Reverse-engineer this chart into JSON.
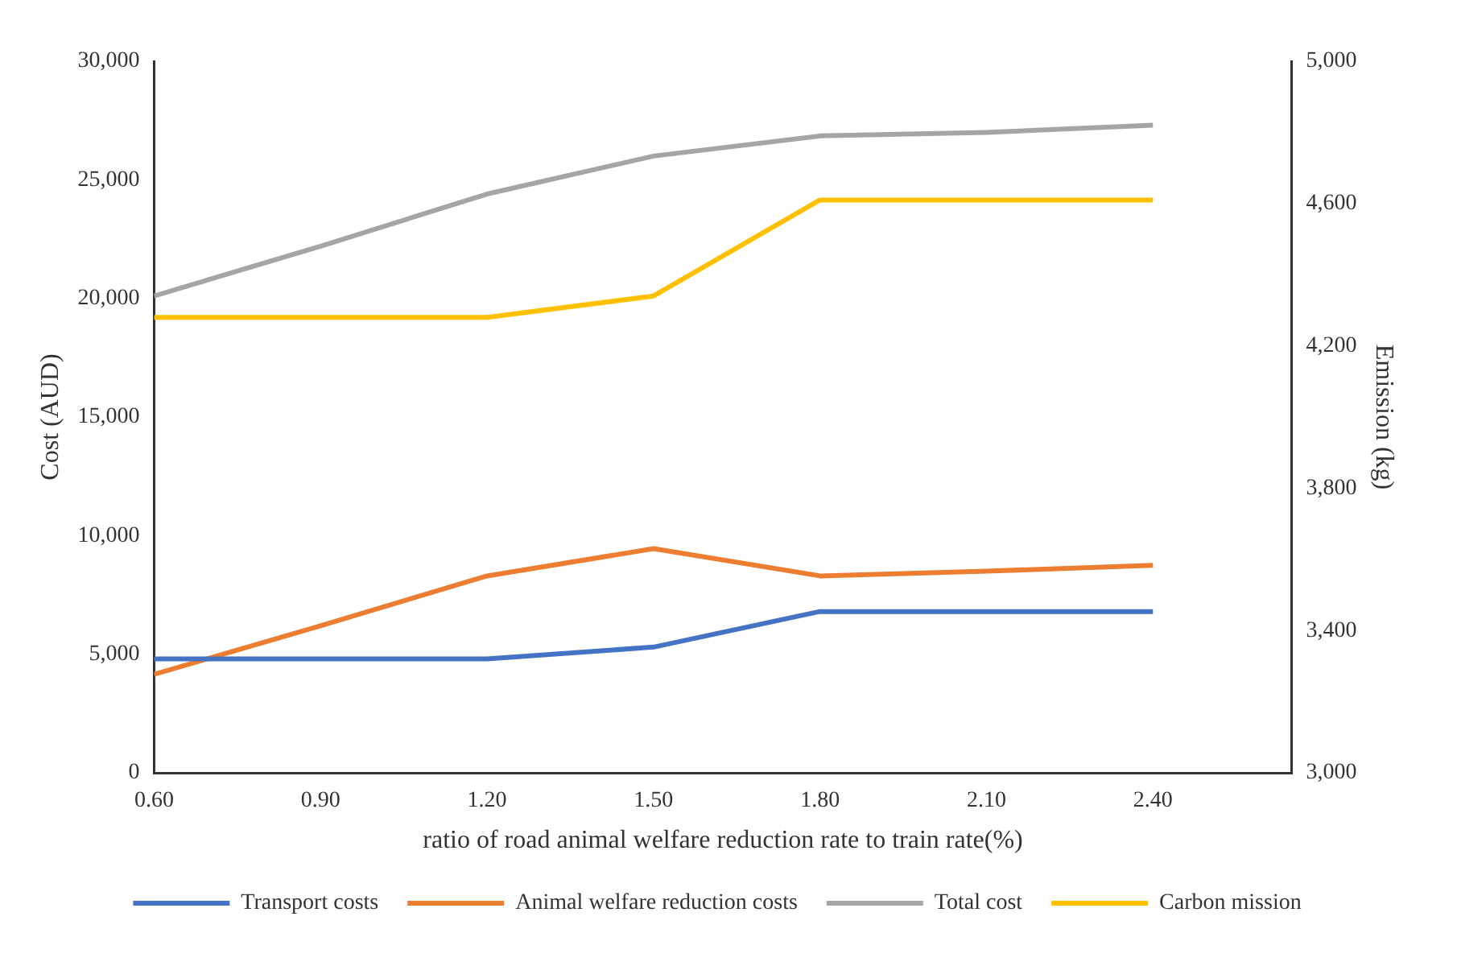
{
  "chart_data": {
    "type": "line",
    "xlabel": "ratio of road animal welfare reduction rate to train rate(%)",
    "ylabel": "Cost (AUD)",
    "y2label": "Emission (kg)",
    "x": [
      0.6,
      0.9,
      1.2,
      1.5,
      1.8,
      2.1,
      2.4
    ],
    "series": [
      {
        "name": "Transport costs",
        "color": "#4472c4",
        "values": [
          4800,
          4800,
          4800,
          5300,
          6800,
          6800,
          6800
        ]
      },
      {
        "name": "Animal welfare reduction costs",
        "color": "#ed7d31",
        "values": [
          4150,
          6200,
          8300,
          9450,
          8300,
          8500,
          8750
        ]
      },
      {
        "name": "Total cost",
        "color": "#a5a5a5",
        "values": [
          20100,
          22200,
          24400,
          26000,
          26850,
          27000,
          27300
        ]
      },
      {
        "name": "Carbon mission",
        "color": "#ffc000",
        "axis": "y2",
        "values": [
          4280,
          4280,
          4280,
          4340,
          4610,
          4610,
          4610
        ]
      }
    ],
    "xlim": [
      0.6,
      2.65
    ],
    "xticks": [
      {
        "value": 0.6,
        "label": "0.60"
      },
      {
        "value": 0.9,
        "label": "0.90"
      },
      {
        "value": 1.2,
        "label": "1.20"
      },
      {
        "value": 1.5,
        "label": "1.50"
      },
      {
        "value": 1.8,
        "label": "1.80"
      },
      {
        "value": 2.1,
        "label": "2.10"
      },
      {
        "value": 2.4,
        "label": "2.40"
      }
    ],
    "ylim": [
      0,
      30000
    ],
    "yticks": [
      0,
      {
        "value": 5000,
        "label": "5,000"
      },
      {
        "value": 10000,
        "label": "10,000"
      },
      {
        "value": 15000,
        "label": "15,000"
      },
      {
        "value": 20000,
        "label": "20,000"
      },
      {
        "value": 25000,
        "label": "25,000"
      },
      {
        "value": 30000,
        "label": "30,000"
      }
    ],
    "y2lim": [
      3000,
      5000
    ],
    "y2ticks": [
      {
        "value": 3000,
        "label": "3,000"
      },
      {
        "value": 3400,
        "label": "3,400"
      },
      {
        "value": 3800,
        "label": "3,800"
      },
      {
        "value": 4200,
        "label": "4,200"
      },
      {
        "value": 4600,
        "label": "4,600"
      },
      {
        "value": 5000,
        "label": "5,000"
      }
    ],
    "grid": false,
    "legend": "bottom",
    "marker": "none",
    "line_style": "solid"
  }
}
